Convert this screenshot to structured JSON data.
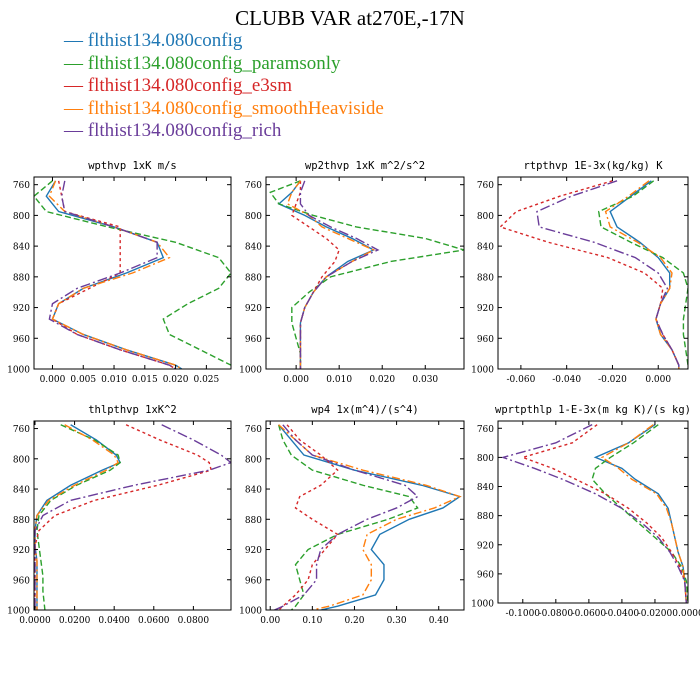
{
  "figure": {
    "title": "CLUBB VAR at270E,-17N"
  },
  "colors": {
    "series": [
      "#1f77b4",
      "#2ca02c",
      "#d62728",
      "#ff7f0e",
      "#6a3d9a"
    ],
    "frame": "#000000",
    "text": "#000000"
  },
  "legend": {
    "entries": [
      "flthist134.080config",
      "flthist134.080config_paramsonly",
      "flthist134.080config_e3sm",
      "flthist134.080config_smoothHeaviside",
      "flthist134.080config_rich"
    ]
  },
  "chart_data": [
    {
      "type": "line",
      "title": "wpthvp   1xK m/s",
      "ylim": [
        1000,
        750
      ],
      "yticks": [
        "760",
        "800",
        "840",
        "880",
        "920",
        "960",
        "1000"
      ],
      "xlim": [
        -0.003,
        0.029
      ],
      "xticks": [
        "0.000",
        "0.005",
        "0.010",
        "0.015",
        "0.020",
        "0.025"
      ],
      "xtick_values": [
        0.0,
        0.005,
        0.01,
        0.015,
        0.02,
        0.025
      ],
      "y": [
        755,
        775,
        795,
        815,
        835,
        855,
        875,
        895,
        915,
        935,
        955,
        975,
        995,
        1000
      ],
      "series": [
        {
          "name": "flthist134.080config",
          "x": [
            0.0005,
            -0.001,
            0.001,
            0.01,
            0.017,
            0.018,
            0.012,
            0.005,
            0.001,
            0.0,
            0.005,
            0.012,
            0.02,
            0.021
          ]
        },
        {
          "name": "flthist134.080config_paramsonly",
          "x": [
            0.0,
            -0.003,
            -0.001,
            0.009,
            0.02,
            0.027,
            0.029,
            0.027,
            0.022,
            0.018,
            0.019,
            0.024,
            0.029,
            0.029
          ]
        },
        {
          "name": "flthist134.080config_e3sm",
          "x": [
            0.001,
            0.0015,
            0.002,
            0.011,
            0.011,
            0.011,
            0.011,
            0.006,
            0.001,
            0.0,
            0.004,
            0.011,
            0.019,
            0.02
          ]
        },
        {
          "name": "flthist134.080config_smoothHeaviside",
          "x": [
            0.0005,
            -0.0005,
            0.002,
            0.01,
            0.017,
            0.019,
            0.013,
            0.005,
            0.001,
            0.0,
            0.005,
            0.012,
            0.02,
            0.021
          ]
        },
        {
          "name": "flthist134.080config_rich",
          "x": [
            0.002,
            0.0015,
            0.002,
            0.01,
            0.017,
            0.017,
            0.011,
            0.004,
            0.0,
            -0.0005,
            0.004,
            0.011,
            0.019,
            0.02
          ]
        }
      ]
    },
    {
      "type": "line",
      "title": "wp2thvp   1xK m^2/s^2",
      "ylim": [
        1000,
        750
      ],
      "yticks": [
        "760",
        "800",
        "840",
        "880",
        "920",
        "960",
        "1000"
      ],
      "xlim": [
        -0.007,
        0.039
      ],
      "xticks": [
        "0.000",
        "0.010",
        "0.020",
        "0.030"
      ],
      "xtick_values": [
        0.0,
        0.01,
        0.02,
        0.03
      ],
      "y": [
        755,
        770,
        785,
        800,
        815,
        830,
        845,
        860,
        880,
        900,
        920,
        940,
        960,
        980,
        1000
      ],
      "series": [
        {
          "name": "flthist134.080config",
          "x": [
            0.001,
            -0.001,
            -0.004,
            0.002,
            0.007,
            0.013,
            0.018,
            0.012,
            0.007,
            0.004,
            0.002,
            0.001,
            0.001,
            0.001,
            0.001
          ]
        },
        {
          "name": "flthist134.080config_paramsonly",
          "x": [
            0.001,
            -0.006,
            -0.004,
            0.004,
            0.014,
            0.03,
            0.039,
            0.022,
            0.008,
            0.003,
            -0.001,
            -0.001,
            0.0,
            0.001,
            0.001
          ]
        },
        {
          "name": "flthist134.080config_e3sm",
          "x": [
            0.001,
            0.001,
            0.0,
            -0.001,
            0.003,
            0.007,
            0.01,
            0.009,
            0.006,
            0.004,
            0.002,
            0.001,
            0.001,
            0.001,
            0.001
          ]
        },
        {
          "name": "flthist134.080config_smoothHeaviside",
          "x": [
            0.001,
            -0.001,
            -0.002,
            0.003,
            0.006,
            0.012,
            0.018,
            0.013,
            0.007,
            0.004,
            0.002,
            0.001,
            0.001,
            0.001,
            0.001
          ]
        },
        {
          "name": "flthist134.080config_rich",
          "x": [
            0.002,
            0.001,
            0.001,
            0.003,
            0.008,
            0.014,
            0.019,
            0.013,
            0.007,
            0.004,
            0.002,
            0.001,
            0.001,
            0.001,
            0.001
          ]
        }
      ]
    },
    {
      "type": "line",
      "title": "rtpthvp   1E-3x(kg/kg) K",
      "ylim": [
        1000,
        750
      ],
      "yticks": [
        "760",
        "800",
        "840",
        "880",
        "920",
        "960",
        "1000"
      ],
      "xlim": [
        -0.07,
        0.013
      ],
      "xticks": [
        "-0.060",
        "-0.040",
        "-0.020",
        "0.000"
      ],
      "xtick_values": [
        -0.06,
        -0.04,
        -0.02,
        0.0
      ],
      "y": [
        755,
        775,
        795,
        815,
        835,
        855,
        875,
        895,
        915,
        935,
        955,
        975,
        995,
        1000
      ],
      "series": [
        {
          "name": "flthist134.080config",
          "x": [
            -0.003,
            -0.012,
            -0.021,
            -0.018,
            -0.008,
            0.0,
            0.005,
            0.005,
            0.001,
            -0.001,
            0.001,
            0.006,
            0.009,
            0.009
          ]
        },
        {
          "name": "flthist134.080config_paramsonly",
          "x": [
            -0.002,
            -0.011,
            -0.026,
            -0.025,
            -0.012,
            0.002,
            0.011,
            0.013,
            0.012,
            0.011,
            0.011,
            0.012,
            0.013,
            0.013
          ]
        },
        {
          "name": "flthist134.080config_e3sm",
          "x": [
            -0.02,
            -0.043,
            -0.062,
            -0.069,
            -0.048,
            -0.022,
            -0.006,
            0.002,
            0.001,
            -0.001,
            0.002,
            0.006,
            0.009,
            0.009
          ]
        },
        {
          "name": "flthist134.080config_smoothHeaviside",
          "x": [
            -0.004,
            -0.013,
            -0.023,
            -0.021,
            -0.009,
            0.001,
            0.006,
            0.005,
            0.001,
            -0.001,
            0.001,
            0.006,
            0.009,
            0.009
          ]
        },
        {
          "name": "flthist134.080config_rich",
          "x": [
            -0.018,
            -0.038,
            -0.053,
            -0.052,
            -0.028,
            -0.01,
            0.0,
            0.004,
            0.001,
            -0.001,
            0.002,
            0.006,
            0.009,
            0.009
          ]
        }
      ]
    },
    {
      "type": "line",
      "title": "thlpthvp   1xK^2",
      "ylim": [
        1000,
        750
      ],
      "yticks": [
        "760",
        "800",
        "840",
        "880",
        "920",
        "960",
        "1000"
      ],
      "xlim": [
        -0.0005,
        0.099
      ],
      "xticks": [
        "0.0000",
        "0.0200",
        "0.0400",
        "0.0600",
        "0.0800"
      ],
      "xtick_values": [
        0.0,
        0.02,
        0.04,
        0.06,
        0.08
      ],
      "y": [
        755,
        775,
        795,
        805,
        815,
        835,
        855,
        875,
        895,
        915,
        935,
        955,
        975,
        1000
      ],
      "series": [
        {
          "name": "flthist134.080config",
          "x": [
            0.018,
            0.031,
            0.041,
            0.043,
            0.034,
            0.018,
            0.006,
            0.001,
            0.0,
            0.0,
            0.001,
            0.001,
            0.001,
            0.001
          ]
        },
        {
          "name": "flthist134.080config_paramsonly",
          "x": [
            0.013,
            0.03,
            0.042,
            0.043,
            0.038,
            0.021,
            0.008,
            0.002,
            0.001,
            0.002,
            0.003,
            0.004,
            0.004,
            0.005
          ]
        },
        {
          "name": "flthist134.080config_e3sm",
          "x": [
            0.046,
            0.063,
            0.082,
            0.088,
            0.089,
            0.062,
            0.03,
            0.01,
            0.002,
            0.0,
            0.0,
            0.0,
            0.0,
            0.0
          ]
        },
        {
          "name": "flthist134.080config_smoothHeaviside",
          "x": [
            0.015,
            0.029,
            0.04,
            0.042,
            0.036,
            0.02,
            0.007,
            0.001,
            0.0,
            0.0,
            0.001,
            0.001,
            0.001,
            0.001
          ]
        },
        {
          "name": "flthist134.080config_rich",
          "x": [
            0.064,
            0.08,
            0.094,
            0.099,
            0.088,
            0.05,
            0.018,
            0.004,
            0.0,
            0.0,
            0.0,
            0.0,
            0.0,
            0.0
          ]
        }
      ]
    },
    {
      "type": "line",
      "title": "wp4   1x(m^4)/(s^4)",
      "ylim": [
        1000,
        750
      ],
      "yticks": [
        "760",
        "800",
        "840",
        "880",
        "920",
        "960",
        "1000"
      ],
      "xlim": [
        -0.01,
        0.46
      ],
      "xticks": [
        "0.00",
        "0.10",
        "0.20",
        "0.30",
        "0.40"
      ],
      "xtick_values": [
        0.0,
        0.1,
        0.2,
        0.3,
        0.4
      ],
      "y": [
        755,
        775,
        795,
        815,
        835,
        850,
        865,
        880,
        900,
        920,
        940,
        960,
        980,
        995,
        1000
      ],
      "series": [
        {
          "name": "flthist134.080config",
          "x": [
            0.02,
            0.05,
            0.08,
            0.2,
            0.36,
            0.45,
            0.41,
            0.33,
            0.26,
            0.24,
            0.27,
            0.27,
            0.25,
            0.16,
            0.12
          ]
        },
        {
          "name": "flthist134.080config_paramsonly",
          "x": [
            0.02,
            0.03,
            0.05,
            0.1,
            0.22,
            0.33,
            0.35,
            0.28,
            0.16,
            0.09,
            0.06,
            0.07,
            0.08,
            0.06,
            0.05
          ]
        },
        {
          "name": "flthist134.080config_e3sm",
          "x": [
            0.04,
            0.07,
            0.12,
            0.16,
            0.12,
            0.07,
            0.06,
            0.1,
            0.16,
            0.13,
            0.1,
            0.09,
            0.06,
            0.03,
            0.02
          ]
        },
        {
          "name": "flthist134.080config_smoothHeaviside",
          "x": [
            0.02,
            0.06,
            0.1,
            0.22,
            0.37,
            0.45,
            0.39,
            0.3,
            0.23,
            0.22,
            0.24,
            0.24,
            0.22,
            0.14,
            0.1
          ]
        },
        {
          "name": "flthist134.080config_rich",
          "x": [
            0.03,
            0.06,
            0.1,
            0.2,
            0.32,
            0.35,
            0.3,
            0.23,
            0.16,
            0.12,
            0.11,
            0.11,
            0.08,
            0.03,
            0.01
          ]
        }
      ]
    },
    {
      "type": "line",
      "title": "wprtpthlp   1-E-3x(m kg K)/(s kg)",
      "ylim": [
        1000,
        750
      ],
      "yticks": [
        "760",
        "800",
        "840",
        "880",
        "920",
        "960",
        "1000"
      ],
      "xlim": [
        -0.115,
        0.0
      ],
      "xticks": [
        "-0.1000",
        "-0.0800",
        "-0.0600",
        "-0.0400",
        "-0.0200",
        "0.0000"
      ],
      "xtick_values": [
        -0.1,
        -0.08,
        -0.06,
        -0.04,
        -0.02,
        0.0
      ],
      "y": [
        755,
        780,
        800,
        815,
        830,
        850,
        870,
        890,
        910,
        930,
        950,
        970,
        1000
      ],
      "series": [
        {
          "name": "flthist134.080config",
          "x": [
            -0.02,
            -0.036,
            -0.056,
            -0.04,
            -0.032,
            -0.018,
            -0.012,
            -0.01,
            -0.008,
            -0.006,
            -0.003,
            -0.002,
            -0.001
          ]
        },
        {
          "name": "flthist134.080config_paramsonly",
          "x": [
            -0.018,
            -0.033,
            -0.047,
            -0.056,
            -0.058,
            -0.05,
            -0.04,
            -0.03,
            -0.02,
            -0.01,
            -0.004,
            -0.001,
            0.0
          ]
        },
        {
          "name": "flthist134.080config_e3sm",
          "x": [
            -0.055,
            -0.07,
            -0.1,
            -0.082,
            -0.068,
            -0.05,
            -0.036,
            -0.025,
            -0.016,
            -0.01,
            -0.005,
            -0.002,
            -0.001
          ]
        },
        {
          "name": "flthist134.080config_smoothHeaviside",
          "x": [
            -0.021,
            -0.036,
            -0.052,
            -0.042,
            -0.034,
            -0.019,
            -0.013,
            -0.01,
            -0.008,
            -0.006,
            -0.003,
            -0.002,
            -0.001
          ]
        },
        {
          "name": "flthist134.080config_rich",
          "x": [
            -0.058,
            -0.08,
            -0.112,
            -0.093,
            -0.076,
            -0.056,
            -0.04,
            -0.028,
            -0.018,
            -0.011,
            -0.006,
            -0.002,
            -0.001
          ]
        }
      ]
    }
  ]
}
